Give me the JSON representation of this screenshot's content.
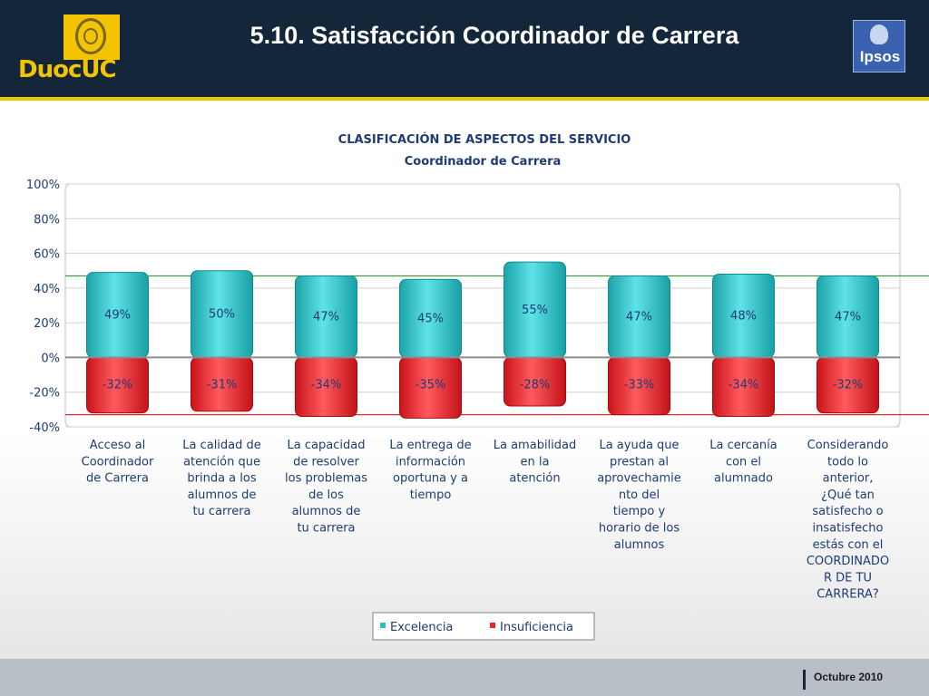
{
  "header": {
    "title": "5.10. Satisfacción Coordinador de Carrera",
    "logo_left": "DuocUC",
    "logo_right": "Ipsos"
  },
  "footer": {
    "date": "Octubre 2010"
  },
  "colors": {
    "excelencia": "#2bbfc5",
    "insuficiencia": "#e8252b",
    "header_bg": "#14263a",
    "accent": "#f2c500"
  },
  "chart_data": {
    "type": "bar",
    "title": "CLASIFICACIÓN DE ASPECTOS DEL SERVICIO",
    "subtitle": "Coordinador de Carrera",
    "categories": [
      "Acceso al Coordinador de Carrera",
      "La calidad de atención que brinda a los alumnos de tu carrera",
      "La capacidad de resolver los problemas de los alumnos de tu carrera",
      "La entrega de información oportuna y a tiempo",
      "La amabilidad en la atención",
      "La ayuda que prestan al aprovechamiento del tiempo y horario de los alumnos",
      "La cercanía con el alumnado",
      "Considerando todo lo anterior, ¿Qué tan satisfecho o insatisfecho estás con el COORDINADOR DE TU CARRERA?"
    ],
    "category_lines": [
      [
        "Acceso al",
        "Coordinador",
        "de Carrera"
      ],
      [
        "La calidad de",
        "atención que",
        "brinda a los",
        "alumnos de",
        "tu carrera"
      ],
      [
        "La capacidad",
        "de resolver",
        "los problemas",
        "de los",
        "alumnos de",
        "tu carrera"
      ],
      [
        "La entrega de",
        "información",
        "oportuna y a",
        "tiempo"
      ],
      [
        "La amabilidad",
        "en la",
        "atención"
      ],
      [
        "La ayuda que",
        "prestan al",
        "aprovechamie",
        "nto del",
        "tiempo y",
        "horario de los",
        "alumnos"
      ],
      [
        "La cercanía",
        "con el",
        "alumnado"
      ],
      [
        "Considerando",
        "todo lo",
        "anterior,",
        "¿Qué tan",
        "satisfecho o",
        "insatisfecho",
        "estás con el",
        "COORDINADO",
        "R DE TU",
        "CARRERA?"
      ]
    ],
    "series": [
      {
        "name": "Excelencia",
        "values": [
          49,
          50,
          47,
          45,
          55,
          47,
          48,
          47
        ],
        "labels": [
          "49%",
          "50%",
          "47%",
          "45%",
          "55%",
          "47%",
          "48%",
          "47%"
        ]
      },
      {
        "name": "Insuficiencia",
        "values": [
          -32,
          -31,
          -34,
          -35,
          -28,
          -33,
          -34,
          -32
        ],
        "labels": [
          "-32%",
          "-31%",
          "-34%",
          "-35%",
          "-28%",
          "-33%",
          "-34%",
          "-32%"
        ]
      }
    ],
    "reference_lines": [
      47,
      -33
    ],
    "yticks": [
      "100%",
      "80%",
      "60%",
      "40%",
      "20%",
      "0%",
      "-20%",
      "-40%"
    ],
    "ytick_values": [
      100,
      80,
      60,
      40,
      20,
      0,
      -20,
      -40
    ],
    "ylim": [
      -40,
      100
    ],
    "grid": true,
    "legend_position": "bottom"
  }
}
